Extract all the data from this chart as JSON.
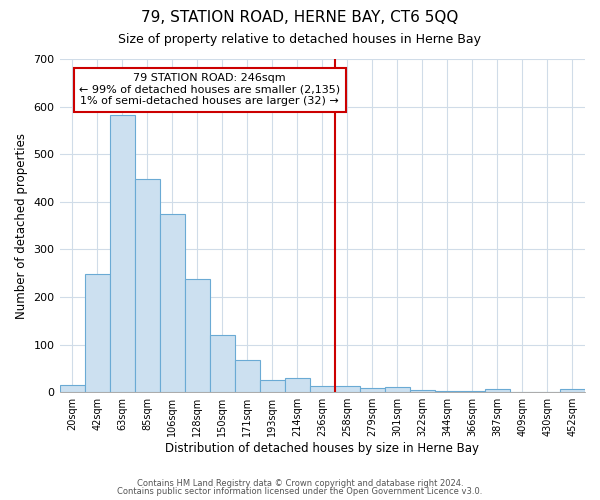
{
  "title": "79, STATION ROAD, HERNE BAY, CT6 5QQ",
  "subtitle": "Size of property relative to detached houses in Herne Bay",
  "xlabel": "Distribution of detached houses by size in Herne Bay",
  "ylabel": "Number of detached properties",
  "bar_labels": [
    "20sqm",
    "42sqm",
    "63sqm",
    "85sqm",
    "106sqm",
    "128sqm",
    "150sqm",
    "171sqm",
    "193sqm",
    "214sqm",
    "236sqm",
    "258sqm",
    "279sqm",
    "301sqm",
    "322sqm",
    "344sqm",
    "366sqm",
    "387sqm",
    "409sqm",
    "430sqm",
    "452sqm"
  ],
  "bar_values": [
    15,
    248,
    583,
    448,
    375,
    238,
    120,
    68,
    25,
    30,
    12,
    12,
    8,
    10,
    5,
    2,
    2,
    6,
    0,
    0,
    6
  ],
  "bar_color": "#cce0f0",
  "bar_edge_color": "#6aaad4",
  "vline_color": "#cc0000",
  "annotation_line1": "79 STATION ROAD: 246sqm",
  "annotation_line2": "← 99% of detached houses are smaller (2,135)",
  "annotation_line3": "1% of semi-detached houses are larger (32) →",
  "annotation_box_color": "#ffffff",
  "annotation_box_edge": "#cc0000",
  "ylim": [
    0,
    700
  ],
  "yticks": [
    0,
    100,
    200,
    300,
    400,
    500,
    600,
    700
  ],
  "bg_color": "#ffffff",
  "plot_bg_color": "#ffffff",
  "grid_color": "#d0dce8",
  "footer1": "Contains HM Land Registry data © Crown copyright and database right 2024.",
  "footer2": "Contains public sector information licensed under the Open Government Licence v3.0."
}
